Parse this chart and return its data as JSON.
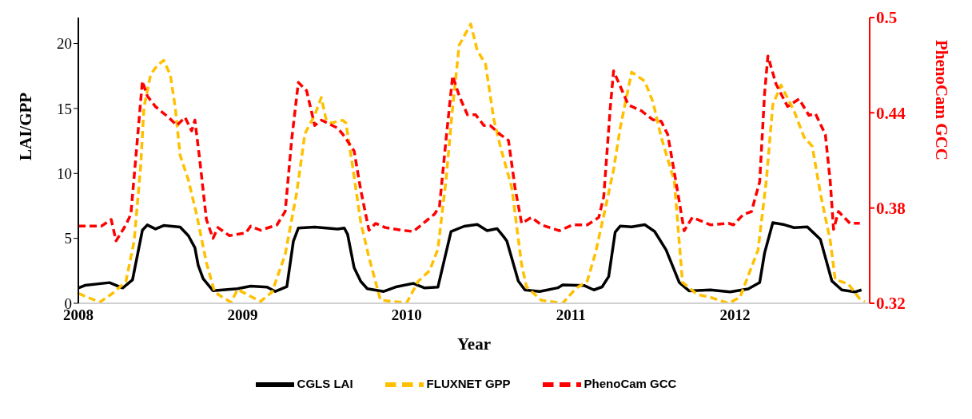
{
  "chart_data": {
    "type": "line",
    "xlabel": "Year",
    "ylabel": "LAI/GPP",
    "y2label": "PhenoCam GCC",
    "xlim": [
      2008,
      2012.82
    ],
    "xticks": [
      2008,
      2009,
      2010,
      2011,
      2012
    ],
    "ylim": [
      0,
      22
    ],
    "yticks": [
      0,
      5,
      10,
      15,
      20
    ],
    "y2lim": [
      0.32,
      0.5
    ],
    "y2ticks": [
      0.32,
      0.38,
      0.44,
      0.5
    ],
    "grid": false,
    "legend": "bottom",
    "marker": "none",
    "series": [
      {
        "name": "CGLS LAI",
        "color": "#000000",
        "line_style": "solid",
        "x": [
          2008.0,
          2008.04,
          2008.19,
          2008.27,
          2008.33,
          2008.39,
          2008.42,
          2008.47,
          2008.52,
          2008.62,
          2008.67,
          2008.71,
          2008.73,
          2008.76,
          2008.82,
          2008.97,
          2009.05,
          2009.15,
          2009.2,
          2009.27,
          2009.31,
          2009.34,
          2009.44,
          2009.58,
          2009.62,
          2009.64,
          2009.68,
          2009.72,
          2009.76,
          2009.86,
          2009.94,
          2010.04,
          2010.11,
          2010.19,
          2010.27,
          2010.35,
          2010.43,
          2010.49,
          2010.55,
          2010.59,
          2010.61,
          2010.68,
          2010.72,
          2010.81,
          2010.92,
          2010.95,
          2011.08,
          2011.14,
          2011.19,
          2011.23,
          2011.27,
          2011.3,
          2011.37,
          2011.45,
          2011.51,
          2011.58,
          2011.66,
          2011.72,
          2011.85,
          2011.97,
          2012.08,
          2012.15,
          2012.18,
          2012.23,
          2012.3,
          2012.36,
          2012.44,
          2012.52,
          2012.59,
          2012.65,
          2012.73,
          2012.77
        ],
        "values": [
          1.18,
          1.38,
          1.59,
          1.18,
          1.8,
          5.62,
          6.03,
          5.72,
          5.99,
          5.87,
          5.21,
          4.28,
          2.93,
          1.9,
          0.97,
          1.12,
          1.32,
          1.24,
          0.91,
          1.28,
          4.79,
          5.79,
          5.87,
          5.72,
          5.79,
          5.31,
          2.73,
          1.69,
          1.12,
          0.91,
          1.28,
          1.53,
          1.18,
          1.24,
          5.52,
          5.93,
          6.07,
          5.59,
          5.75,
          5.14,
          4.79,
          1.71,
          1.03,
          0.91,
          1.19,
          1.42,
          1.37,
          1.03,
          1.26,
          2.05,
          5.48,
          5.94,
          5.89,
          6.05,
          5.53,
          4.11,
          1.6,
          0.96,
          1.03,
          0.87,
          1.1,
          1.6,
          3.88,
          6.21,
          6.05,
          5.82,
          5.89,
          4.91,
          1.71,
          1.03,
          0.87,
          1.03
        ]
      },
      {
        "name": "FLUXNET GPP",
        "color": "#ffc000",
        "line_style": "dashed",
        "x": [
          2008.0,
          2008.13,
          2008.22,
          2008.29,
          2008.34,
          2008.38,
          2008.4,
          2008.44,
          2008.48,
          2008.52,
          2008.56,
          2008.59,
          2008.62,
          2008.67,
          2008.72,
          2008.78,
          2008.83,
          2008.88,
          2008.93,
          2008.97,
          2009.03,
          2009.11,
          2009.18,
          2009.26,
          2009.33,
          2009.38,
          2009.44,
          2009.48,
          2009.51,
          2009.54,
          2009.61,
          2009.63,
          2009.67,
          2009.72,
          2009.77,
          2009.84,
          2009.91,
          2010.0,
          2010.07,
          2010.14,
          2010.19,
          2010.24,
          2010.28,
          2010.32,
          2010.39,
          2010.43,
          2010.48,
          2010.53,
          2010.57,
          2010.64,
          2010.7,
          2010.73,
          2010.82,
          2010.95,
          2011.03,
          2011.1,
          2011.15,
          2011.21,
          2011.26,
          2011.3,
          2011.37,
          2011.45,
          2011.5,
          2011.55,
          2011.63,
          2011.68,
          2011.77,
          2011.85,
          2011.96,
          2012.03,
          2012.14,
          2012.19,
          2012.23,
          2012.28,
          2012.36,
          2012.42,
          2012.47,
          2012.52,
          2012.58,
          2012.61,
          2012.69,
          2012.76,
          2012.79
        ],
        "values": [
          0.76,
          0.08,
          0.87,
          1.69,
          4.79,
          10.6,
          15.1,
          17.6,
          18.3,
          18.7,
          17.6,
          15.1,
          11.4,
          9.5,
          6.86,
          3.14,
          0.87,
          0.45,
          0.08,
          1.07,
          0.66,
          0.14,
          0.87,
          3.76,
          8.51,
          13.06,
          14.5,
          15.85,
          14.09,
          13.88,
          14.09,
          13.88,
          10.58,
          6.24,
          3.55,
          0.25,
          0.14,
          0.04,
          1.69,
          2.52,
          4.17,
          9.55,
          15.12,
          19.88,
          21.5,
          19.46,
          18.43,
          14.2,
          12.1,
          8.9,
          2.97,
          1.26,
          0.23,
          0,
          1.14,
          1.71,
          3.88,
          7.31,
          10.27,
          13.47,
          17.8,
          17.1,
          15.5,
          12.8,
          9.4,
          1.6,
          0.68,
          0.46,
          0,
          0.46,
          4.1,
          9.4,
          15.3,
          16.8,
          14.8,
          12.8,
          12.1,
          8.45,
          4.8,
          1.83,
          1.48,
          0.34,
          0.11
        ]
      },
      {
        "name": "PhenoCam GCC",
        "color": "#ff0000",
        "line_style": "dashed",
        "axis": "y2",
        "x": [
          2008.0,
          2008.14,
          2008.2,
          2008.23,
          2008.29,
          2008.32,
          2008.36,
          2008.39,
          2008.42,
          2008.47,
          2008.55,
          2008.6,
          2008.65,
          2008.69,
          2008.71,
          2008.74,
          2008.78,
          2008.82,
          2008.85,
          2008.92,
          2009.02,
          2009.05,
          2009.11,
          2009.21,
          2009.26,
          2009.3,
          2009.34,
          2009.39,
          2009.44,
          2009.48,
          2009.53,
          2009.58,
          2009.62,
          2009.68,
          2009.72,
          2009.76,
          2009.77,
          2009.81,
          2009.87,
          2009.97,
          2010.04,
          2010.1,
          2010.17,
          2010.2,
          2010.24,
          2010.28,
          2010.32,
          2010.37,
          2010.42,
          2010.47,
          2010.51,
          2010.57,
          2010.62,
          2010.66,
          2010.7,
          2010.76,
          2010.82,
          2010.93,
          2011.01,
          2011.1,
          2011.17,
          2011.2,
          2011.24,
          2011.26,
          2011.35,
          2011.43,
          2011.5,
          2011.55,
          2011.59,
          2011.64,
          2011.69,
          2011.74,
          2011.85,
          2011.96,
          2011.99,
          2012.05,
          2012.1,
          2012.15,
          2012.18,
          2012.2,
          2012.25,
          2012.32,
          2012.39,
          2012.45,
          2012.49,
          2012.55,
          2012.58,
          2012.6,
          2012.63,
          2012.7,
          2012.76
        ],
        "values": [
          0.3686,
          0.3686,
          0.3728,
          0.3593,
          0.3694,
          0.3762,
          0.4236,
          0.4599,
          0.4506,
          0.4439,
          0.4371,
          0.432,
          0.4371,
          0.4286,
          0.4354,
          0.41,
          0.3728,
          0.3609,
          0.3677,
          0.3626,
          0.3643,
          0.3686,
          0.366,
          0.3694,
          0.3779,
          0.4236,
          0.4591,
          0.454,
          0.432,
          0.4354,
          0.4329,
          0.4303,
          0.4252,
          0.4159,
          0.3914,
          0.3711,
          0.366,
          0.3703,
          0.3677,
          0.366,
          0.3652,
          0.3703,
          0.3762,
          0.3813,
          0.4236,
          0.4633,
          0.4506,
          0.4388,
          0.4388,
          0.432,
          0.4319,
          0.4263,
          0.4226,
          0.3927,
          0.3704,
          0.3741,
          0.3694,
          0.3657,
          0.3694,
          0.3694,
          0.3741,
          0.3871,
          0.4431,
          0.4664,
          0.445,
          0.4412,
          0.4356,
          0.4347,
          0.4263,
          0.3965,
          0.3657,
          0.3741,
          0.3694,
          0.3704,
          0.3694,
          0.3759,
          0.3778,
          0.3965,
          0.4524,
          0.4757,
          0.458,
          0.444,
          0.4487,
          0.4384,
          0.4394,
          0.4263,
          0.3965,
          0.3666,
          0.3778,
          0.3704,
          0.3704
        ]
      }
    ]
  }
}
